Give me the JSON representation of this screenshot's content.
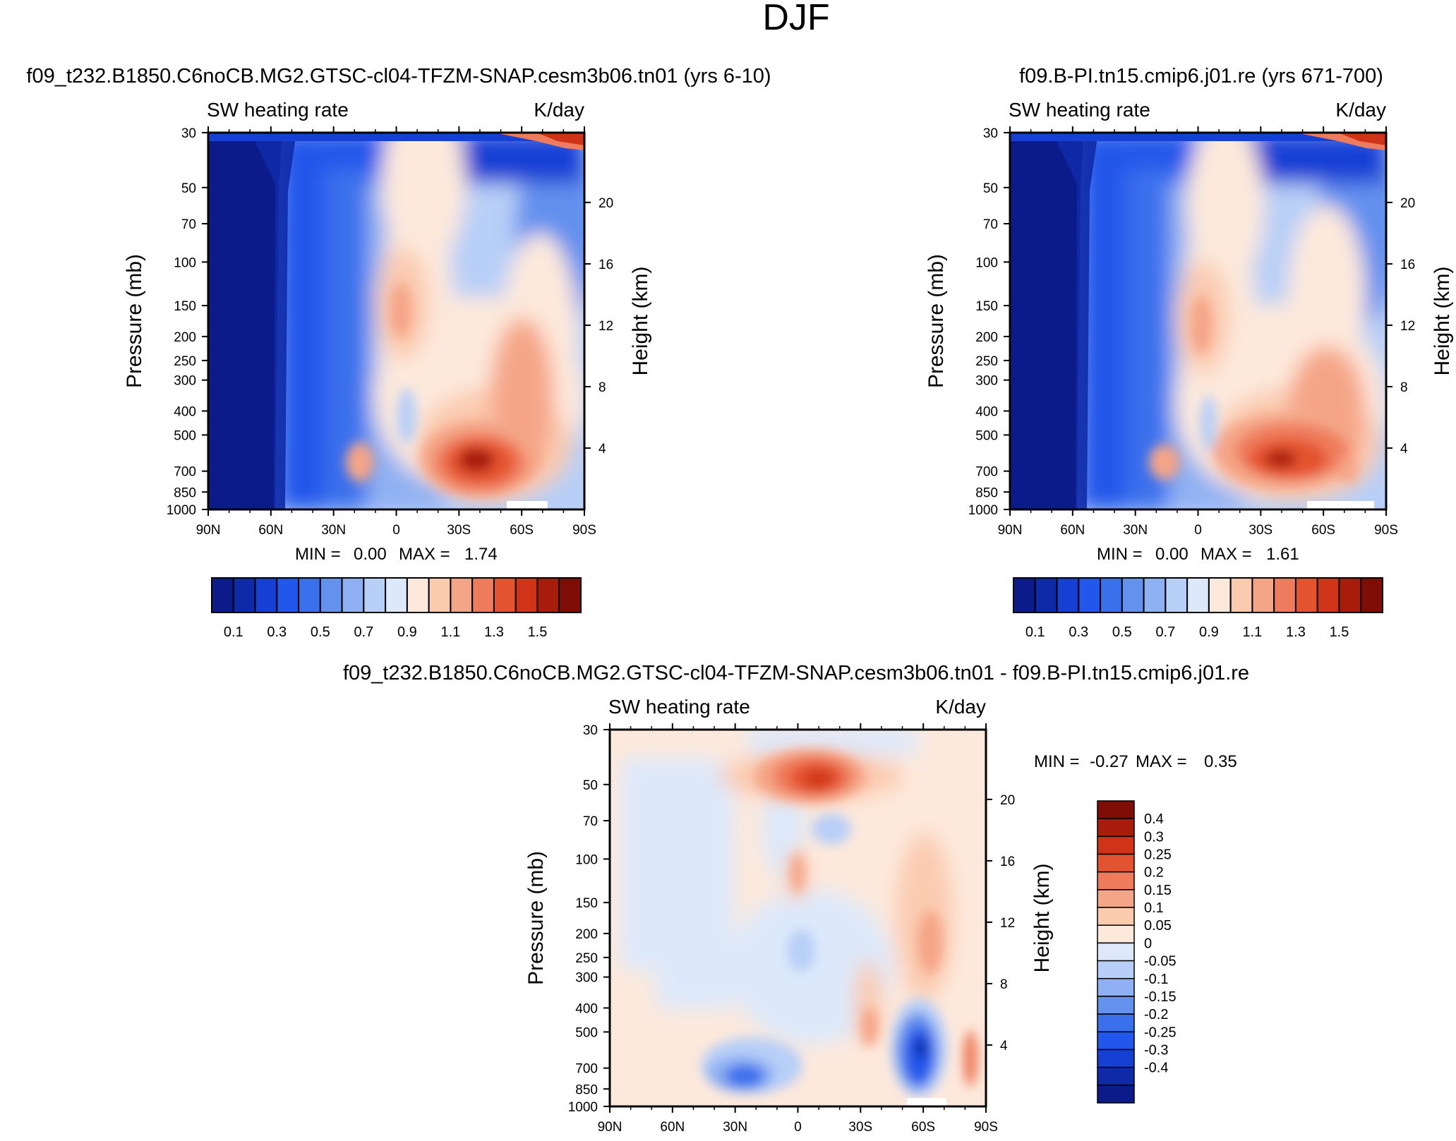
{
  "figure": {
    "title": "DJF"
  },
  "colors": {
    "abs_scale": [
      "#0b1c8a",
      "#0e2aa8",
      "#1640d4",
      "#2157ea",
      "#3b70ec",
      "#6490ee",
      "#8fb0f2",
      "#b8cff7",
      "#dde9fb",
      "#fde9dc",
      "#fbcbb0",
      "#f5a587",
      "#ee7c5c",
      "#e4532f",
      "#cf3418",
      "#a81c0b",
      "#7d0d05"
    ],
    "diff_scale": [
      "#0b1c8a",
      "#0e2aa8",
      "#1640d4",
      "#2157ea",
      "#3b70ec",
      "#6490ee",
      "#8fb0f2",
      "#b8cff7",
      "#dde9fb",
      "#fde9dc",
      "#fbcbb0",
      "#f5a587",
      "#ee7c5c",
      "#e4532f",
      "#cf3418",
      "#a81c0b",
      "#7d0d05"
    ]
  },
  "chart_data": [
    {
      "type": "heatmap",
      "panel": "test",
      "title": "f09_t232.B1850.C6noCB.MG2.GTSC-cl04-TFZM-SNAP.cesm3b06.tn01 (yrs 6-10)",
      "left_label": "SW heating rate",
      "right_label": "K/day",
      "xlabel": "",
      "ylabel": "Pressure (mb)",
      "y2label": "Height (km)",
      "x_ticks": [
        "90N",
        "60N",
        "30N",
        "0",
        "30S",
        "60S",
        "90S"
      ],
      "y_ticks": [
        "30",
        "50",
        "70",
        "100",
        "150",
        "200",
        "250",
        "300",
        "400",
        "500",
        "700",
        "850",
        "1000"
      ],
      "y2_ticks": [
        "20",
        "16",
        "12",
        "8",
        "4"
      ],
      "min_label": "MIN =",
      "min_value": "0.00",
      "max_label": "MAX =",
      "max_value": "1.74",
      "colorbar_labels": [
        "0.1",
        "0.3",
        "0.5",
        "0.7",
        "0.9",
        "1.1",
        "1.3",
        "1.5"
      ]
    },
    {
      "type": "heatmap",
      "panel": "control",
      "title": "f09.B-PI.tn15.cmip6.j01.re (yrs 671-700)",
      "left_label": "SW heating rate",
      "right_label": "K/day",
      "xlabel": "",
      "ylabel": "Pressure (mb)",
      "y2label": "Height (km)",
      "x_ticks": [
        "90N",
        "60N",
        "30N",
        "0",
        "30S",
        "60S",
        "90S"
      ],
      "y_ticks": [
        "30",
        "50",
        "70",
        "100",
        "150",
        "200",
        "250",
        "300",
        "400",
        "500",
        "700",
        "850",
        "1000"
      ],
      "y2_ticks": [
        "20",
        "16",
        "12",
        "8",
        "4"
      ],
      "min_label": "MIN =",
      "min_value": "0.00",
      "max_label": "MAX =",
      "max_value": "1.61",
      "colorbar_labels": [
        "0.1",
        "0.3",
        "0.5",
        "0.7",
        "0.9",
        "1.1",
        "1.3",
        "1.5"
      ]
    },
    {
      "type": "heatmap",
      "panel": "difference",
      "title": "f09_t232.B1850.C6noCB.MG2.GTSC-cl04-TFZM-SNAP.cesm3b06.tn01 - f09.B-PI.tn15.cmip6.j01.re",
      "left_label": "SW heating rate",
      "right_label": "K/day",
      "xlabel": "",
      "ylabel": "Pressure (mb)",
      "y2label": "Height (km)",
      "x_ticks": [
        "90N",
        "60N",
        "30N",
        "0",
        "30S",
        "60S",
        "90S"
      ],
      "y_ticks": [
        "30",
        "50",
        "70",
        "100",
        "150",
        "200",
        "250",
        "300",
        "400",
        "500",
        "700",
        "850",
        "1000"
      ],
      "y2_ticks": [
        "20",
        "16",
        "12",
        "8",
        "4"
      ],
      "min_label": "MIN =",
      "min_value": "-0.27",
      "max_label": "MAX =",
      "max_value": "0.35",
      "colorbar_labels": [
        "0.4",
        "0.3",
        "0.25",
        "0.2",
        "0.15",
        "0.1",
        "0.05",
        "0",
        "-0.05",
        "-0.1",
        "-0.15",
        "-0.2",
        "-0.25",
        "-0.3",
        "-0.4"
      ]
    }
  ]
}
